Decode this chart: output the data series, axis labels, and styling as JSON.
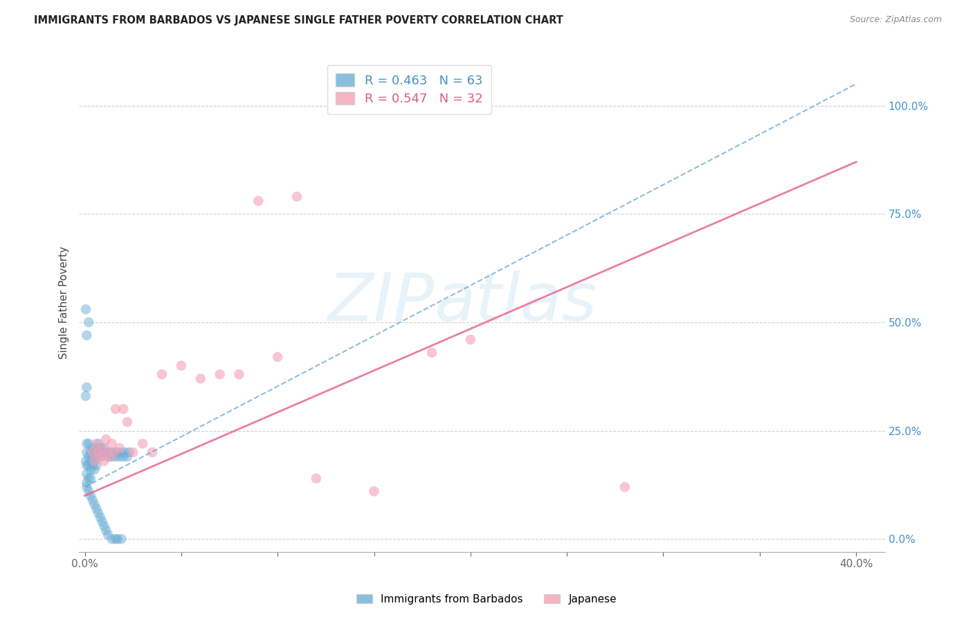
{
  "title": "IMMIGRANTS FROM BARBADOS VS JAPANESE SINGLE FATHER POVERTY CORRELATION CHART",
  "source": "Source: ZipAtlas.com",
  "ylabel": "Single Father Poverty",
  "ytick_values": [
    0.0,
    0.25,
    0.5,
    0.75,
    1.0
  ],
  "xtick_values": [
    0.0,
    0.05,
    0.1,
    0.15,
    0.2,
    0.25,
    0.3,
    0.35,
    0.4
  ],
  "xlim": [
    -0.003,
    0.415
  ],
  "ylim": [
    -0.03,
    1.12
  ],
  "blue_color": "#6baed6",
  "pink_color": "#f4a0b5",
  "blue_line_color": "#5598c8",
  "pink_line_color": "#e8698a",
  "blue_x": [
    0.0005,
    0.001,
    0.001,
    0.001,
    0.001,
    0.001,
    0.001,
    0.002,
    0.002,
    0.002,
    0.002,
    0.002,
    0.003,
    0.003,
    0.003,
    0.003,
    0.003,
    0.004,
    0.004,
    0.004,
    0.004,
    0.005,
    0.005,
    0.005,
    0.005,
    0.006,
    0.006,
    0.006,
    0.006,
    0.007,
    0.007,
    0.007,
    0.008,
    0.008,
    0.008,
    0.009,
    0.009,
    0.01,
    0.01,
    0.011,
    0.011,
    0.012,
    0.012,
    0.013,
    0.014,
    0.014,
    0.015,
    0.016,
    0.016,
    0.017,
    0.017,
    0.018,
    0.019,
    0.019,
    0.02,
    0.021,
    0.022,
    0.023,
    0.0005,
    0.001,
    0.001,
    0.002,
    0.0005
  ],
  "blue_y": [
    0.18,
    0.2,
    0.22,
    0.17,
    0.15,
    0.13,
    0.12,
    0.19,
    0.17,
    0.22,
    0.14,
    0.11,
    0.2,
    0.18,
    0.16,
    0.14,
    0.1,
    0.21,
    0.19,
    0.17,
    0.09,
    0.2,
    0.18,
    0.16,
    0.08,
    0.21,
    0.19,
    0.17,
    0.07,
    0.22,
    0.2,
    0.06,
    0.21,
    0.19,
    0.05,
    0.2,
    0.04,
    0.21,
    0.03,
    0.2,
    0.02,
    0.19,
    0.01,
    0.2,
    0.19,
    0.0,
    0.2,
    0.19,
    0.0,
    0.2,
    0.0,
    0.19,
    0.2,
    0.0,
    0.19,
    0.2,
    0.19,
    0.2,
    0.33,
    0.35,
    0.47,
    0.5,
    0.53
  ],
  "pink_x": [
    0.004,
    0.005,
    0.006,
    0.007,
    0.008,
    0.009,
    0.01,
    0.011,
    0.012,
    0.013,
    0.014,
    0.015,
    0.016,
    0.018,
    0.02,
    0.022,
    0.025,
    0.03,
    0.035,
    0.04,
    0.05,
    0.06,
    0.07,
    0.08,
    0.1,
    0.12,
    0.15,
    0.18,
    0.2,
    0.28,
    0.09,
    0.11
  ],
  "pink_y": [
    0.2,
    0.18,
    0.22,
    0.2,
    0.19,
    0.21,
    0.18,
    0.23,
    0.2,
    0.19,
    0.22,
    0.2,
    0.3,
    0.21,
    0.3,
    0.27,
    0.2,
    0.22,
    0.2,
    0.38,
    0.4,
    0.37,
    0.38,
    0.38,
    0.42,
    0.14,
    0.11,
    0.43,
    0.46,
    0.12,
    0.78,
    0.79
  ],
  "blue_trendline_x": [
    0.0,
    0.4
  ],
  "blue_trendline_y": [
    0.12,
    1.05
  ],
  "pink_trendline_x": [
    0.0,
    0.4
  ],
  "pink_trendline_y": [
    0.1,
    0.87
  ]
}
